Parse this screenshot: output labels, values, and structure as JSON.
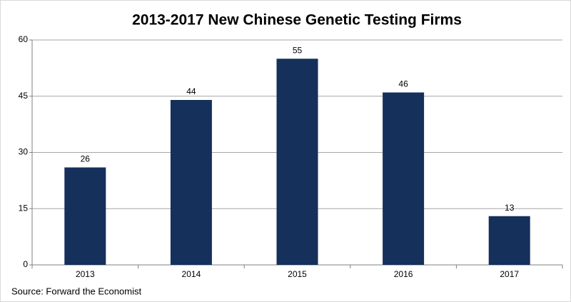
{
  "chart_data": {
    "type": "bar",
    "title": "2013-2017 New Chinese Genetic Testing Firms",
    "categories": [
      "2013",
      "2014",
      "2015",
      "2016",
      "2017"
    ],
    "values": [
      26,
      44,
      55,
      46,
      13
    ],
    "color": "#15305a",
    "ylim": [
      0,
      60
    ],
    "yticks": [
      0,
      15,
      30,
      45,
      60
    ],
    "grid": true,
    "source": "Source: Forward the Economist"
  }
}
